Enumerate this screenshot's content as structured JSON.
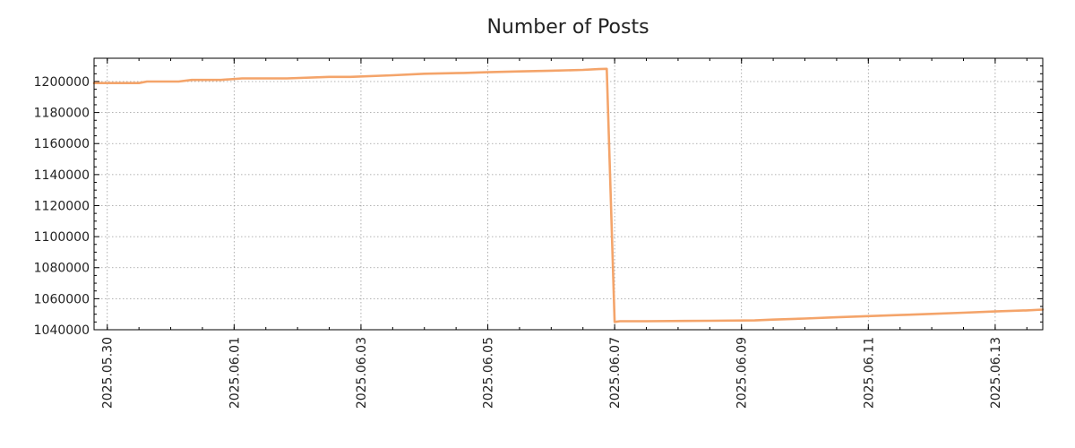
{
  "chart_data": {
    "type": "line",
    "title": "Number of Posts",
    "xlabel": "",
    "ylabel": "",
    "grid": true,
    "line_color": "#f4a46a",
    "xlim": [
      "2025-05-29T19:00",
      "2025-06-13T18:00"
    ],
    "ylim": [
      1040000,
      1215000
    ],
    "x_ticks": [
      "2025.05.30",
      "2025.06.01",
      "2025.06.03",
      "2025.06.05",
      "2025.06.07",
      "2025.06.09",
      "2025.06.11",
      "2025.06.13"
    ],
    "y_ticks": [
      1040000,
      1060000,
      1080000,
      1100000,
      1120000,
      1140000,
      1160000,
      1180000,
      1200000
    ],
    "series": [
      {
        "x": [
          "2025-05-29T19:00",
          "2025-05-30T12:00",
          "2025-05-30T15:00",
          "2025-05-31T03:00",
          "2025-05-31T08:00",
          "2025-05-31T19:00",
          "2025-06-01T03:00",
          "2025-06-01T20:00",
          "2025-06-02T12:00",
          "2025-06-02T20:00",
          "2025-06-03T12:00",
          "2025-06-04T00:00",
          "2025-06-04T15:00",
          "2025-06-05T00:00",
          "2025-06-05T12:00",
          "2025-06-06T00:00",
          "2025-06-06T12:00",
          "2025-06-06T18:00",
          "2025-06-06T21:00",
          "2025-06-07T00:00",
          "2025-06-07T02:00",
          "2025-06-07T12:00",
          "2025-06-08T12:00",
          "2025-06-09T05:00",
          "2025-06-09T12:00",
          "2025-06-10T00:00",
          "2025-06-10T12:00",
          "2025-06-11T00:00",
          "2025-06-11T12:00",
          "2025-06-12T00:00",
          "2025-06-12T12:00",
          "2025-06-13T00:00",
          "2025-06-13T12:00",
          "2025-06-13T18:00"
        ],
        "y": [
          1199000,
          1199000,
          1200000,
          1200000,
          1201000,
          1201000,
          1202000,
          1202000,
          1203000,
          1203000,
          1204000,
          1205000,
          1205500,
          1206000,
          1206500,
          1207000,
          1207500,
          1208000,
          1208200,
          1045000,
          1045500,
          1045500,
          1045800,
          1046000,
          1046500,
          1047200,
          1048000,
          1048800,
          1049500,
          1050200,
          1051000,
          1051800,
          1052500,
          1053000
        ]
      }
    ]
  }
}
